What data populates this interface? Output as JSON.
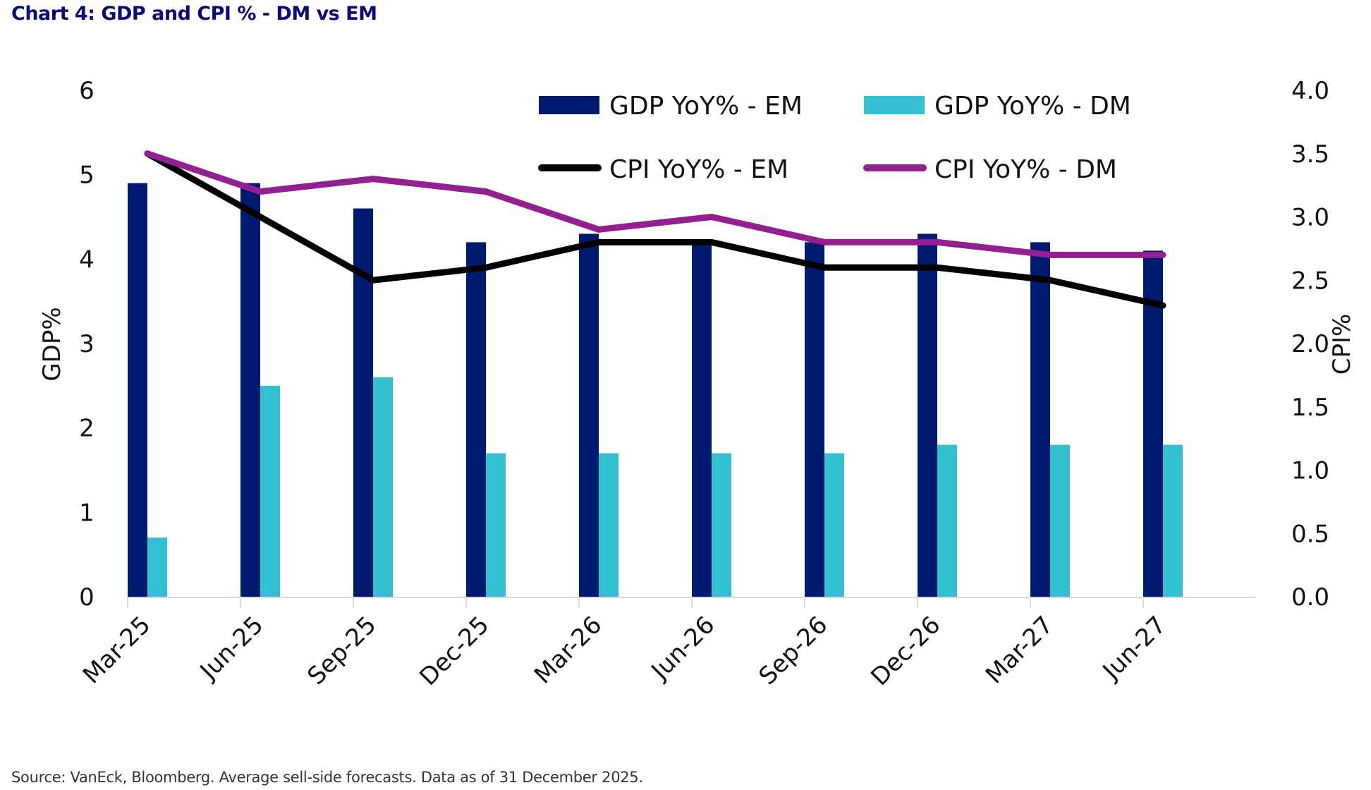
{
  "title": "Chart 4: GDP and CPI % - DM vs EM",
  "source": "Source: VanEck, Bloomberg. Average sell-side forecasts. Data as of 31 December 2025.",
  "colors": {
    "gdp_em": "#001a70",
    "gdp_dm": "#33c1d1",
    "cpi_em": "#000000",
    "cpi_dm": "#922090",
    "title": "#0a0a78",
    "axis": "#d9d9d9"
  },
  "chart_data": {
    "type": "bar",
    "title": "Chart 4: GDP and CPI % - DM vs EM",
    "categories": [
      "Mar-25",
      "Jun-25",
      "Sep-25",
      "Dec-25",
      "Mar-26",
      "Jun-26",
      "Sep-26",
      "Dec-26",
      "Mar-27",
      "Jun-27"
    ],
    "ylabel": "GDP%",
    "y2label": "CPI%",
    "ylim": [
      0,
      6
    ],
    "y2lim": [
      0,
      4.0
    ],
    "yticks": [
      "0",
      "1",
      "2",
      "3",
      "4",
      "5",
      "6"
    ],
    "y2ticks": [
      "0.0",
      "0.5",
      "1.0",
      "1.5",
      "2.0",
      "2.5",
      "3.0",
      "3.5",
      "4.0"
    ],
    "grid": false,
    "legend_position": "top-right",
    "series": [
      {
        "name": "GDP YoY% - EM",
        "type": "bar",
        "axis": "left",
        "color": "#001a70",
        "values": [
          4.9,
          4.9,
          4.6,
          4.2,
          4.3,
          4.2,
          4.2,
          4.3,
          4.2,
          4.1
        ]
      },
      {
        "name": "GDP YoY% - DM",
        "type": "bar",
        "axis": "left",
        "color": "#33c1d1",
        "values": [
          0.7,
          2.5,
          2.6,
          1.7,
          1.7,
          1.7,
          1.7,
          1.8,
          1.8,
          1.8
        ]
      },
      {
        "name": "CPI YoY% - EM",
        "type": "line",
        "axis": "right",
        "color": "#000000",
        "values": [
          3.5,
          3.0,
          2.5,
          2.6,
          2.8,
          2.8,
          2.6,
          2.6,
          2.5,
          2.3
        ]
      },
      {
        "name": "CPI YoY% - DM",
        "type": "line",
        "axis": "right",
        "color": "#922090",
        "values": [
          3.5,
          3.2,
          3.3,
          3.2,
          2.9,
          3.0,
          2.8,
          2.8,
          2.7,
          2.7
        ]
      }
    ]
  }
}
